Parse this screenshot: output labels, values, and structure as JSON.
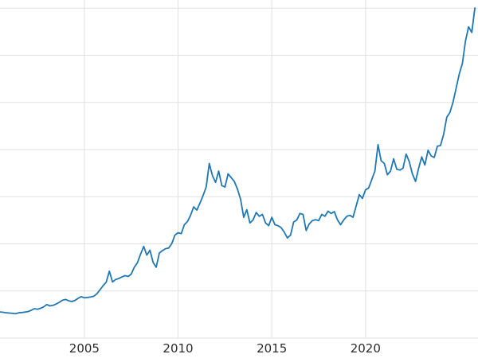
{
  "chart_data": {
    "type": "line",
    "title": "",
    "xlabel": "",
    "ylabel": "",
    "legend": "none",
    "grid": true,
    "xlim": [
      2000.5,
      2026
    ],
    "ylim": [
      0,
      3586
    ],
    "x_start": 2000.5,
    "x_step": 0.166667,
    "xticks": [
      {
        "value": 2005,
        "label": "2005"
      },
      {
        "value": 2010,
        "label": "2010"
      },
      {
        "value": 2015,
        "label": "2015"
      },
      {
        "value": 2020,
        "label": "2020"
      }
    ],
    "yticks_unlabeled": [
      0,
      500,
      1000,
      1500,
      2000,
      2500,
      3000,
      3500
    ],
    "style": {
      "line_color": "#1f77b4",
      "grid_color": "#e1e1e1",
      "tick_label_color": "#2b2b2b",
      "background": "#ffffff",
      "line_width": 1.8,
      "tick_font_size": 15
    },
    "values": [
      278,
      274,
      268,
      266,
      262,
      258,
      268,
      272,
      276,
      282,
      295,
      312,
      306,
      316,
      332,
      356,
      342,
      348,
      362,
      380,
      402,
      410,
      396,
      388,
      400,
      422,
      440,
      428,
      430,
      436,
      444,
      470,
      512,
      556,
      592,
      710,
      596,
      622,
      632,
      648,
      662,
      654,
      678,
      752,
      800,
      892,
      972,
      880,
      932,
      802,
      752,
      902,
      928,
      948,
      956,
      1004,
      1092,
      1118,
      1108,
      1202,
      1236,
      1302,
      1392,
      1358,
      1432,
      1512,
      1602,
      1852,
      1722,
      1652,
      1772,
      1618,
      1602,
      1742,
      1702,
      1662,
      1582,
      1472,
      1282,
      1362,
      1222,
      1252,
      1332,
      1292,
      1312,
      1222,
      1192,
      1282,
      1202,
      1192,
      1172,
      1122,
      1062,
      1092,
      1232,
      1252,
      1322,
      1312,
      1142,
      1212,
      1246,
      1256,
      1246,
      1312,
      1292,
      1346,
      1322,
      1342,
      1256,
      1202,
      1252,
      1292,
      1302,
      1282,
      1402,
      1522,
      1482,
      1572,
      1592,
      1682,
      1772,
      2052,
      1882,
      1852,
      1732,
      1772,
      1902,
      1792,
      1782,
      1802,
      1952,
      1872,
      1742,
      1662,
      1802,
      1922,
      1836,
      1992,
      1932,
      1916,
      2036,
      2042,
      2162,
      2342,
      2392,
      2502,
      2652,
      2802,
      2912,
      3152,
      3302,
      3242,
      3502
    ]
  }
}
